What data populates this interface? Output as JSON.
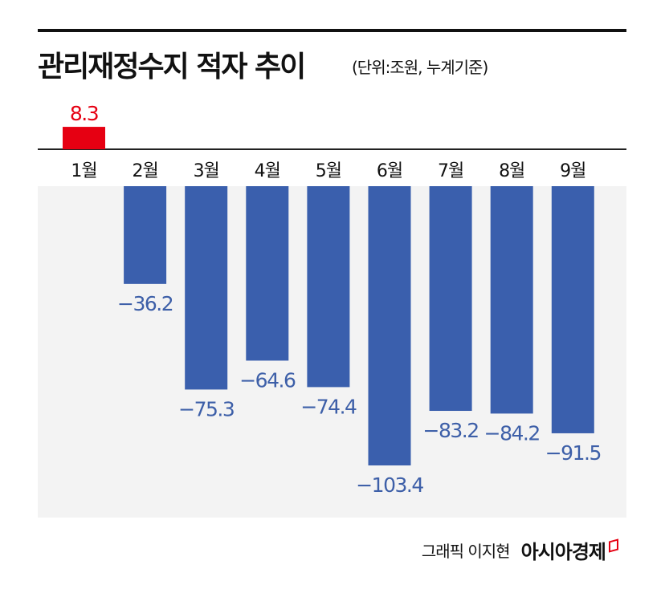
{
  "header": {
    "title": "관리재정수지 적자 추이",
    "subtitle": "(단위:조원, 누계기준)"
  },
  "footer": {
    "credit": "그래픽 이지현",
    "brand": "아시아경제"
  },
  "chart_data": {
    "type": "bar",
    "title": "관리재정수지 적자 추이",
    "unit": "(단위:조원, 누계기준)",
    "categories": [
      "1월",
      "2월",
      "3월",
      "4월",
      "5월",
      "6월",
      "7월",
      "8월",
      "9월"
    ],
    "values": [
      8.3,
      -36.2,
      -75.3,
      -64.6,
      -74.4,
      -103.4,
      -83.2,
      -84.2,
      -91.5
    ],
    "value_labels": [
      "8.3",
      "−36.2",
      "−75.3",
      "−64.6",
      "−74.4",
      "−103.4",
      "−83.2",
      "−84.2",
      "−91.5"
    ],
    "colors": {
      "positive": "#e60012",
      "negative": "#3a5fad",
      "negative_label": "#3d5fa8",
      "background": "#f3f3f3"
    },
    "grid": false,
    "legend": "none"
  }
}
